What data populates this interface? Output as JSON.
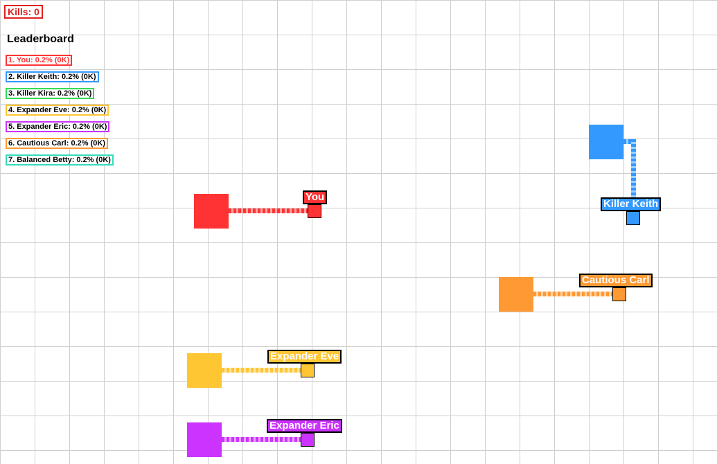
{
  "hud": {
    "kills_label": "Kills: 0"
  },
  "leaderboard": {
    "title": "Leaderboard",
    "entries": [
      {
        "text": "1. You: 0.2% (0K)",
        "color": "#ff3333"
      },
      {
        "text": "2. Killer Keith: 0.2% (0K)",
        "color": "#3399ff"
      },
      {
        "text": "3. Killer Kira: 0.2% (0K)",
        "color": "#33dd55"
      },
      {
        "text": "4. Expander Eve: 0.2% (0K)",
        "color": "#ffc633"
      },
      {
        "text": "5. Expander Eric: 0.2% (0K)",
        "color": "#cc33ff"
      },
      {
        "text": "6. Cautious Carl: 0.2% (0K)",
        "color": "#ff9933"
      },
      {
        "text": "7. Balanced Betty: 0.2% (0K)",
        "color": "#33ddbb"
      }
    ]
  },
  "players": {
    "you": {
      "name": "You",
      "color": "#ff3333"
    },
    "killer_keith": {
      "name": "Killer Keith",
      "color": "#3399ff"
    },
    "cautious_carl": {
      "name": "Cautious Carl",
      "color": "#ff9933"
    },
    "expander_eve": {
      "name": "Expander Eve",
      "color": "#ffc633"
    },
    "expander_eric": {
      "name": "Expander Eric",
      "color": "#cc33ff"
    }
  }
}
